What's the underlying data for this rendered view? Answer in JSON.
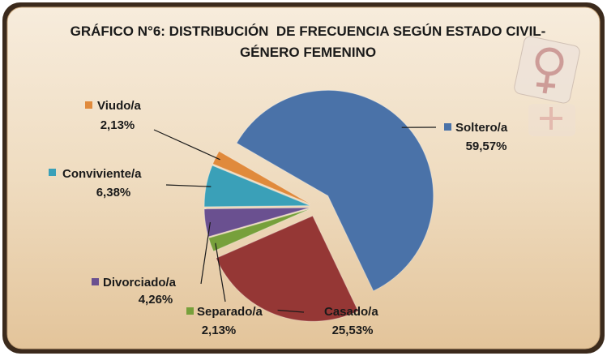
{
  "chart_data": {
    "type": "pie",
    "title": "GRÁFICO N°6: DISTRIBUCIÓN  DE FRECUENCIA SEGÚN ESTADO CIVIL- GÉNERO FEMENINO",
    "categories": [
      "Soltero/a",
      "Casado/a",
      "Separado/a",
      "Divorciado/a",
      "Conviviente/a",
      "Viudo/a"
    ],
    "values": [
      59.57,
      25.53,
      2.13,
      4.26,
      6.38,
      2.13
    ],
    "value_labels": [
      "59,57%",
      "25,53%",
      "2,13%",
      "4,26%",
      "6,38%",
      "2,13%"
    ],
    "colors": [
      "#4a72a8",
      "#953735",
      "#77a03b",
      "#6a5090",
      "#3aa0b8",
      "#e08a3c"
    ]
  }
}
